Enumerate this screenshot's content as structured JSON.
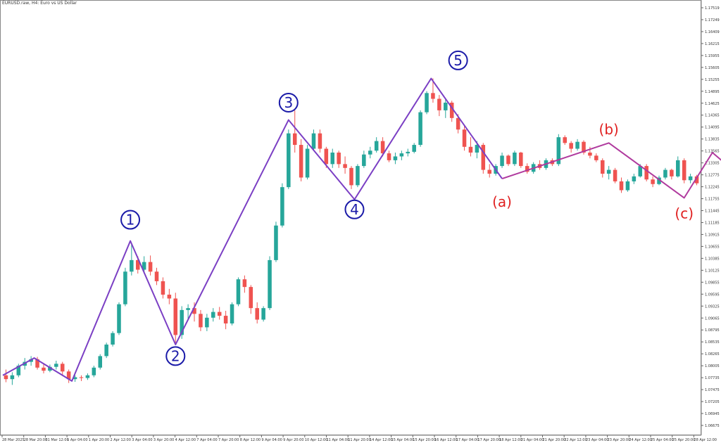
{
  "window": {
    "title": "EURUSD.raw, H4: Euro vs US Dollar"
  },
  "chart_data": {
    "type": "candlestick",
    "title": "EURUSD.raw, H4: Euro vs US Dollar",
    "y_ticks": [
      "1.17519",
      "1.17249",
      "1.16409",
      "1.16215",
      "1.15955",
      "1.15605",
      "1.15255",
      "1.14895",
      "1.14625",
      "1.14365",
      "1.14095",
      "1.13835",
      "1.13565",
      "1.13305",
      "1.12775",
      "1.12245",
      "1.11755",
      "1.11445",
      "1.11185",
      "1.10915",
      "1.10655",
      "1.10385",
      "1.10125",
      "1.09855",
      "1.09595",
      "1.09325",
      "1.09065",
      "1.08795",
      "1.08535",
      "1.08265",
      "1.08005",
      "1.07735",
      "1.07475",
      "1.07205",
      "1.06945",
      "1.06675"
    ],
    "ylim": [
      1.0653,
      1.177
    ],
    "x_ticks": [
      "28 Mar 2025",
      "28 Mar 20:00",
      "31 Mar 12:00",
      "1 Apr 04:00",
      "1 Apr 20:00",
      "2 Apr 12:00",
      "3 Apr 04:00",
      "3 Apr 20:00",
      "4 Apr 12:00",
      "7 Apr 04:00",
      "7 Apr 20:00",
      "8 Apr 12:00",
      "9 Apr 04:00",
      "9 Apr 20:00",
      "10 Apr 12:00",
      "11 Apr 04:00",
      "11 Apr 20:00",
      "14 Apr 12:00",
      "15 Apr 04:00",
      "15 Apr 20:00",
      "16 Apr 12:00",
      "17 Apr 04:00",
      "17 Apr 20:00",
      "18 Apr 12:00",
      "21 Apr 04:00",
      "21 Apr 20:00",
      "22 Apr 12:00",
      "23 Apr 04:00",
      "23 Apr 20:00",
      "24 Apr 12:00",
      "25 Apr 04:00",
      "25 Apr 20:00",
      "28 Apr 12:00"
    ],
    "candles": [
      [
        1.08,
        1.0815,
        1.0782,
        1.079
      ],
      [
        1.079,
        1.0808,
        1.0775,
        1.08
      ],
      [
        1.08,
        1.083,
        1.0795,
        1.0825
      ],
      [
        1.0825,
        1.0845,
        1.0815,
        1.0835
      ],
      [
        1.0835,
        1.085,
        1.0825,
        1.0842
      ],
      [
        1.0842,
        1.0848,
        1.0815,
        1.082
      ],
      [
        1.082,
        1.0828,
        1.0805,
        1.0812
      ],
      [
        1.0812,
        1.0828,
        1.0808,
        1.0822
      ],
      [
        1.0822,
        1.0838,
        1.0815,
        1.083
      ],
      [
        1.083,
        1.0835,
        1.08,
        1.081
      ],
      [
        1.081,
        1.0815,
        1.078,
        1.079
      ],
      [
        1.079,
        1.08,
        1.0783,
        1.0795
      ],
      [
        1.0795,
        1.08,
        1.0785,
        1.0793
      ],
      [
        1.0793,
        1.0805,
        1.0788,
        1.08
      ],
      [
        1.08,
        1.0825,
        1.0795,
        1.082
      ],
      [
        1.082,
        1.0855,
        1.0815,
        1.085
      ],
      [
        1.085,
        1.0885,
        1.0845,
        1.088
      ],
      [
        1.088,
        1.0915,
        1.0875,
        1.091
      ],
      [
        1.091,
        1.099,
        1.0905,
        1.0985
      ],
      [
        1.0985,
        1.108,
        1.098,
        1.107
      ],
      [
        1.107,
        1.1145,
        1.106,
        1.11
      ],
      [
        1.11,
        1.111,
        1.1065,
        1.1075
      ],
      [
        1.1075,
        1.111,
        1.1065,
        1.1095
      ],
      [
        1.1095,
        1.1112,
        1.106,
        1.107
      ],
      [
        1.107,
        1.108,
        1.1035,
        1.1045
      ],
      [
        1.1045,
        1.1055,
        1.1,
        1.101
      ],
      [
        1.101,
        1.1025,
        1.0985,
        1.1
      ],
      [
        1.1,
        1.1015,
        1.0883,
        1.0905
      ],
      [
        1.0905,
        1.098,
        1.0895,
        1.097
      ],
      [
        1.097,
        1.0985,
        1.0945,
        1.0975
      ],
      [
        1.0975,
        1.099,
        1.094,
        1.096
      ],
      [
        1.096,
        1.097,
        1.0915,
        1.0925
      ],
      [
        1.0925,
        1.096,
        1.0915,
        1.095
      ],
      [
        1.095,
        1.0975,
        1.094,
        1.0965
      ],
      [
        1.0965,
        1.0978,
        1.0945,
        1.0955
      ],
      [
        1.0955,
        1.0968,
        1.092,
        1.0935
      ],
      [
        1.0935,
        1.099,
        1.093,
        1.0985
      ],
      [
        1.0985,
        1.1055,
        1.098,
        1.105
      ],
      [
        1.105,
        1.106,
        1.1015,
        1.103
      ],
      [
        1.103,
        1.1035,
        1.096,
        1.0975
      ],
      [
        1.0975,
        1.099,
        1.0935,
        1.0945
      ],
      [
        1.0945,
        1.098,
        1.094,
        1.0975
      ],
      [
        1.0975,
        1.111,
        1.097,
        1.11
      ],
      [
        1.11,
        1.12,
        1.1095,
        1.119
      ],
      [
        1.119,
        1.13,
        1.1185,
        1.129
      ],
      [
        1.129,
        1.144,
        1.1285,
        1.143
      ],
      [
        1.143,
        1.149,
        1.138,
        1.14
      ],
      [
        1.14,
        1.1415,
        1.1305,
        1.1315
      ],
      [
        1.1315,
        1.14,
        1.131,
        1.139
      ],
      [
        1.139,
        1.144,
        1.1385,
        1.143
      ],
      [
        1.143,
        1.144,
        1.138,
        1.139
      ],
      [
        1.139,
        1.1395,
        1.134,
        1.135
      ],
      [
        1.135,
        1.139,
        1.134,
        1.138
      ],
      [
        1.138,
        1.1385,
        1.134,
        1.135
      ],
      [
        1.135,
        1.137,
        1.1325,
        1.134
      ],
      [
        1.134,
        1.1345,
        1.1285,
        1.1295
      ],
      [
        1.1295,
        1.135,
        1.129,
        1.1345
      ],
      [
        1.1345,
        1.1385,
        1.134,
        1.1375
      ],
      [
        1.1375,
        1.1395,
        1.1365,
        1.1385
      ],
      [
        1.1385,
        1.142,
        1.138,
        1.141
      ],
      [
        1.141,
        1.142,
        1.137,
        1.1378
      ],
      [
        1.1378,
        1.1385,
        1.1355,
        1.136
      ],
      [
        1.136,
        1.138,
        1.135,
        1.137
      ],
      [
        1.137,
        1.1385,
        1.136,
        1.1378
      ],
      [
        1.1378,
        1.139,
        1.137,
        1.1382
      ],
      [
        1.1382,
        1.1405,
        1.1378,
        1.14
      ],
      [
        1.14,
        1.149,
        1.1395,
        1.1485
      ],
      [
        1.1485,
        1.154,
        1.148,
        1.1535
      ],
      [
        1.1535,
        1.1573,
        1.151,
        1.152
      ],
      [
        1.152,
        1.153,
        1.1475,
        1.149
      ],
      [
        1.149,
        1.152,
        1.147,
        1.151
      ],
      [
        1.151,
        1.1515,
        1.146,
        1.147
      ],
      [
        1.147,
        1.148,
        1.143,
        1.144
      ],
      [
        1.144,
        1.145,
        1.1385,
        1.1395
      ],
      [
        1.1395,
        1.142,
        1.137,
        1.138
      ],
      [
        1.138,
        1.141,
        1.1365,
        1.14
      ],
      [
        1.14,
        1.1405,
        1.1325,
        1.1335
      ],
      [
        1.1335,
        1.135,
        1.1315,
        1.1325
      ],
      [
        1.1325,
        1.135,
        1.132,
        1.1345
      ],
      [
        1.1345,
        1.138,
        1.134,
        1.1372
      ],
      [
        1.1372,
        1.1375,
        1.1345,
        1.135
      ],
      [
        1.135,
        1.1385,
        1.1345,
        1.138
      ],
      [
        1.138,
        1.1382,
        1.134,
        1.1345
      ],
      [
        1.1345,
        1.1352,
        1.1325,
        1.133
      ],
      [
        1.133,
        1.1355,
        1.1325,
        1.135
      ],
      [
        1.135,
        1.136,
        1.1335,
        1.134
      ],
      [
        1.134,
        1.1365,
        1.1335,
        1.136
      ],
      [
        1.136,
        1.1365,
        1.1345,
        1.135
      ],
      [
        1.135,
        1.1428,
        1.1345,
        1.142
      ],
      [
        1.142,
        1.1425,
        1.14,
        1.1405
      ],
      [
        1.1405,
        1.141,
        1.138,
        1.139
      ],
      [
        1.139,
        1.1415,
        1.1385,
        1.1408
      ],
      [
        1.1408,
        1.1412,
        1.1375,
        1.138
      ],
      [
        1.138,
        1.1395,
        1.1365,
        1.1372
      ],
      [
        1.1372,
        1.1378,
        1.1355,
        1.136
      ],
      [
        1.136,
        1.1365,
        1.1315,
        1.1325
      ],
      [
        1.1325,
        1.1345,
        1.131,
        1.1335
      ],
      [
        1.1335,
        1.134,
        1.13,
        1.1305
      ],
      [
        1.1305,
        1.1315,
        1.1275,
        1.1282
      ],
      [
        1.1282,
        1.131,
        1.1278,
        1.1305
      ],
      [
        1.1305,
        1.1325,
        1.1298,
        1.1318
      ],
      [
        1.1318,
        1.135,
        1.1315,
        1.1345
      ],
      [
        1.1345,
        1.135,
        1.1305,
        1.131
      ],
      [
        1.131,
        1.1318,
        1.129,
        1.1298
      ],
      [
        1.1298,
        1.132,
        1.1295,
        1.1315
      ],
      [
        1.1315,
        1.134,
        1.131,
        1.1335
      ],
      [
        1.1335,
        1.1338,
        1.131,
        1.1318
      ],
      [
        1.1318,
        1.137,
        1.1315,
        1.136
      ],
      [
        1.136,
        1.1365,
        1.13,
        1.1308
      ],
      [
        1.1308,
        1.1325,
        1.13,
        1.1318
      ],
      [
        1.1318,
        1.1322,
        1.1295,
        1.13
      ]
    ],
    "colors": {
      "bull": "#26a69a",
      "bear": "#ef5350",
      "main_waves": "#7b3fc4",
      "correction": "#b03a9e",
      "main_labels": "#1a1aa8",
      "correction_labels": "#e02020"
    },
    "main_waves": {
      "line": [
        [
          1.08,
          -0.5
        ],
        [
          1.0845,
          4.5
        ],
        [
          1.0785,
          10.5
        ],
        [
          1.115,
          19.8
        ],
        [
          1.088,
          27
        ],
        [
          1.1465,
          45
        ],
        [
          1.1258,
          55.5
        ],
        [
          1.1573,
          67.7
        ],
        [
          1.1312,
          79
        ]
      ],
      "labels": [
        {
          "text": "1",
          "x": 19.8,
          "y": 1.1205
        },
        {
          "text": "2",
          "x": 27,
          "y": 1.085
        },
        {
          "text": "3",
          "x": 45,
          "y": 1.151
        },
        {
          "text": "4",
          "x": 55.5,
          "y": 1.1232
        },
        {
          "text": "5",
          "x": 72,
          "y": 1.162
        }
      ]
    },
    "correction_waves": {
      "line": [
        [
          1.1312,
          79
        ],
        [
          1.1405,
          96
        ],
        [
          1.1262,
          108
        ],
        [
          1.138,
          112.5
        ],
        [
          1.131,
          117.5
        ]
      ],
      "labels": [
        {
          "text": "(a)",
          "x": 79,
          "y": 1.1252
        },
        {
          "text": "(b)",
          "x": 96,
          "y": 1.144
        },
        {
          "text": "(c)",
          "x": 108,
          "y": 1.1222
        }
      ]
    }
  }
}
